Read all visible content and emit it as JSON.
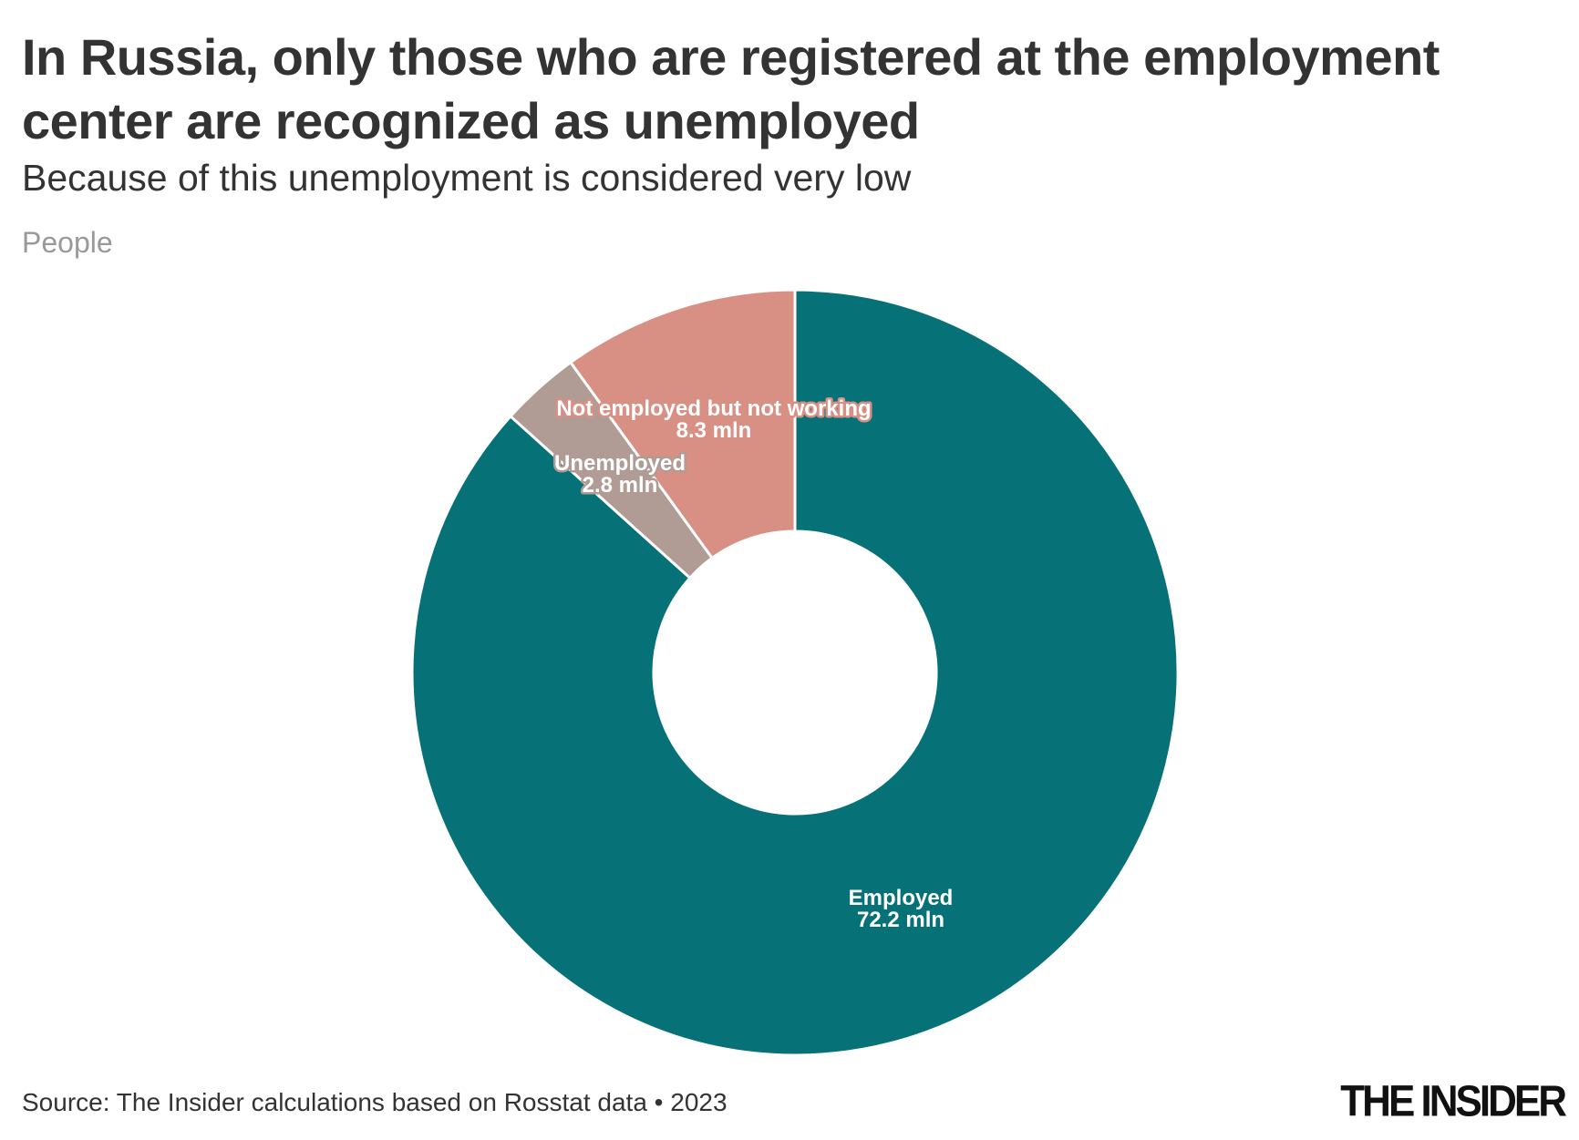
{
  "title": "In Russia, only those who are registered at the employment center are recognized as unemployed",
  "subtitle": "Because of this unemployment is considered very low",
  "unit_label": "People",
  "source": "Source: The Insider calculations based on Rosstat data • 2023",
  "logo": "THE INSIDER",
  "chart_data": {
    "type": "pie",
    "variant": "donut",
    "unit": "mln",
    "slices": [
      {
        "label": "Employed",
        "value": 72.2,
        "value_label": "72.2 mln",
        "color": "#077178"
      },
      {
        "label": "Unemployed",
        "value": 2.8,
        "value_label": "2.8 mln",
        "color": "#b09c95"
      },
      {
        "label": "Not employed but not working",
        "value": 8.3,
        "value_label": "8.3 mln",
        "color": "#d88f84"
      }
    ],
    "start": "top",
    "direction": "clockwise",
    "legend": "none"
  }
}
